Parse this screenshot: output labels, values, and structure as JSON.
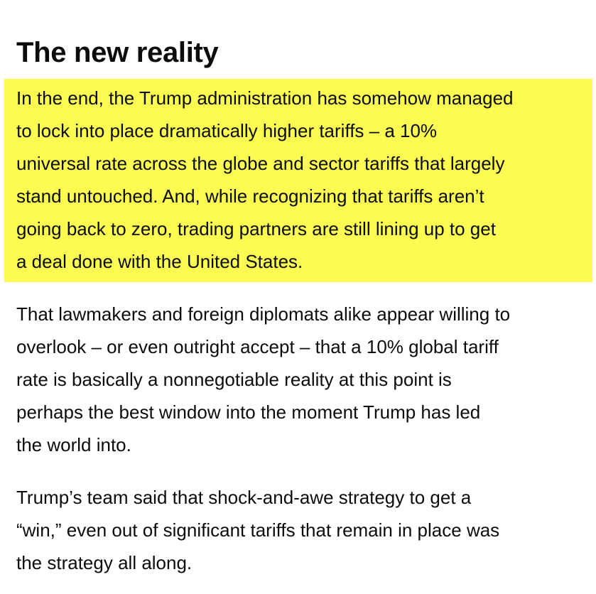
{
  "article": {
    "heading": "The new reality",
    "paragraphs": [
      {
        "highlighted": true,
        "lines": [
          "In the end, the Trump administration has somehow managed",
          "to lock into place dramatically higher tariffs – a 10%",
          "universal rate across the globe and sector tariffs that largely",
          "stand untouched. And, while recognizing that tariffs aren’t",
          "going back to zero, trading partners are still lining up to get",
          "a deal done with the United States."
        ]
      },
      {
        "highlighted": false,
        "lines": [
          "That lawmakers and foreign diplomats alike appear willing to",
          "overlook – or even outright accept – that a 10% global tariff",
          "rate is basically a nonnegotiable reality at this point is",
          "perhaps the best window into the moment Trump has led",
          "the world into."
        ]
      },
      {
        "highlighted": false,
        "lines": [
          "Trump’s team said that shock-and-awe strategy to get a",
          "“win,” even out of significant tariffs that remain in place was",
          "the strategy all along."
        ]
      }
    ]
  },
  "colors": {
    "highlight": "#fbfb52",
    "text": "#0c0c0c",
    "background": "#ffffff"
  }
}
